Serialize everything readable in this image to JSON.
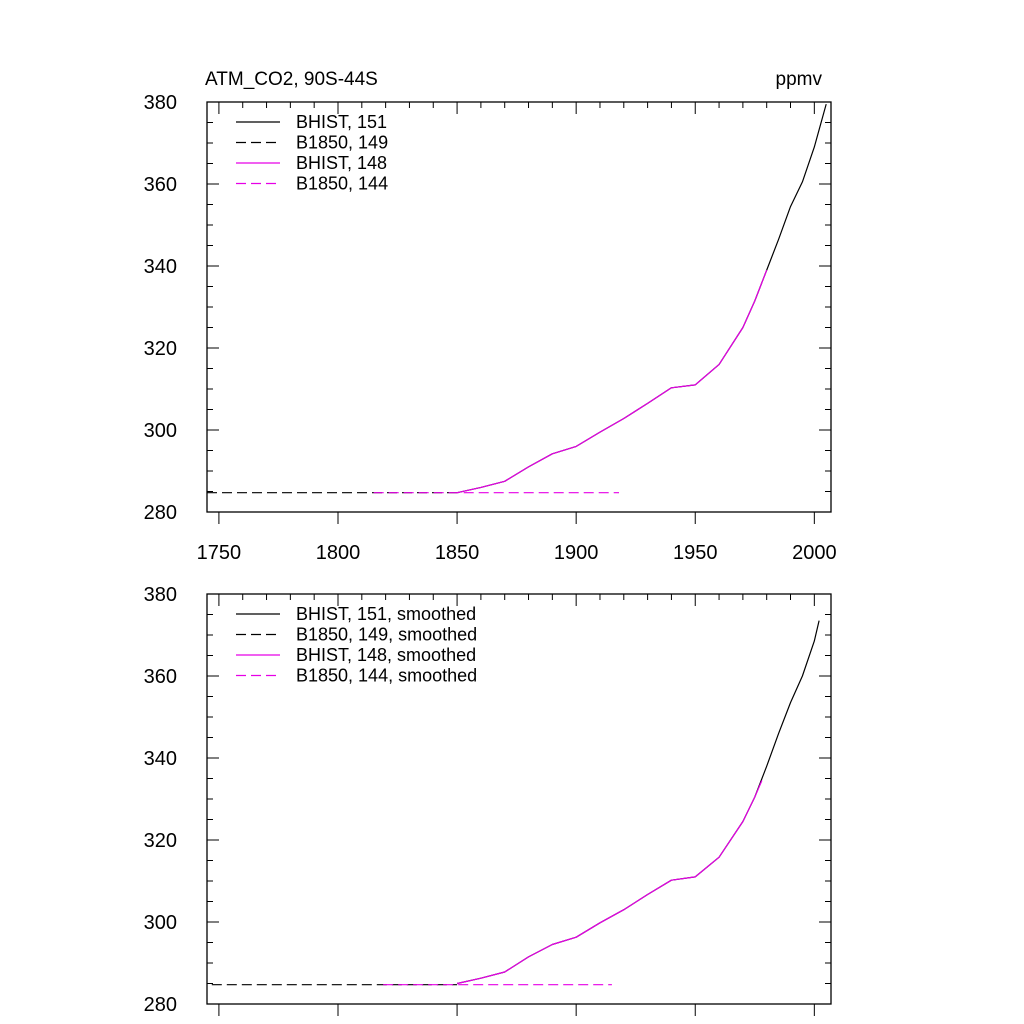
{
  "chart_data": [
    {
      "type": "line",
      "title": "ATM_CO2, 90S-44S",
      "units": "ppmv",
      "xlim": [
        1745,
        2007
      ],
      "ylim": [
        280,
        380
      ],
      "xticks": [
        1750,
        1800,
        1850,
        1900,
        1950,
        2000
      ],
      "xtick_labels": [
        "1750",
        "1800",
        "1850",
        "1900",
        "1950",
        "2000"
      ],
      "yticks": [
        280,
        300,
        320,
        340,
        360,
        380
      ],
      "ytick_labels": [
        "280",
        "300",
        "320",
        "340",
        "360",
        "380"
      ],
      "legend_position": "top-left",
      "series": [
        {
          "name": "BHIST, 151",
          "color": "#000000",
          "dash": "solid",
          "x": [
            1850,
            1860,
            1870,
            1880,
            1890,
            1900,
            1910,
            1920,
            1930,
            1940,
            1950,
            1960,
            1970,
            1975,
            1980,
            1985,
            1990,
            1995,
            2000,
            2005
          ],
          "y": [
            284.7,
            286.0,
            287.5,
            291.0,
            294.2,
            296.0,
            299.5,
            302.8,
            306.5,
            310.3,
            311.0,
            316.0,
            325.0,
            331.5,
            339.0,
            346.5,
            354.5,
            360.5,
            369.0,
            379.5
          ]
        },
        {
          "name": "B1850, 149",
          "color": "#000000",
          "dash": "dashed",
          "x": [
            1745,
            1850
          ],
          "y": [
            284.7,
            284.7
          ]
        },
        {
          "name": "BHIST, 148",
          "color": "#e600e6",
          "dash": "solid",
          "x": [
            1850,
            1860,
            1870,
            1880,
            1890,
            1900,
            1910,
            1920,
            1930,
            1940,
            1950,
            1960,
            1970,
            1975,
            1980
          ],
          "y": [
            284.7,
            286.0,
            287.5,
            291.0,
            294.2,
            296.0,
            299.5,
            302.8,
            306.5,
            310.3,
            311.0,
            316.0,
            325.0,
            331.5,
            339.0
          ]
        },
        {
          "name": "B1850, 144",
          "color": "#e600e6",
          "dash": "dashed",
          "x": [
            1815,
            1918
          ],
          "y": [
            284.7,
            284.7
          ]
        }
      ]
    },
    {
      "type": "line",
      "xlim": [
        1745,
        2007
      ],
      "ylim": [
        280,
        380
      ],
      "xticks": [
        1750,
        1800,
        1850,
        1900,
        1950,
        2000
      ],
      "yticks": [
        280,
        300,
        320,
        340,
        360,
        380
      ],
      "ytick_labels": [
        "280",
        "300",
        "320",
        "340",
        "360",
        "380"
      ],
      "legend_position": "top-left",
      "series": [
        {
          "name": "BHIST, 151, smoothed",
          "color": "#000000",
          "dash": "solid",
          "x": [
            1850,
            1860,
            1870,
            1880,
            1890,
            1900,
            1910,
            1920,
            1930,
            1940,
            1950,
            1960,
            1970,
            1975,
            1980,
            1985,
            1990,
            1995,
            2000,
            2002
          ],
          "y": [
            285.0,
            286.3,
            287.8,
            291.5,
            294.5,
            296.3,
            299.8,
            303.0,
            306.7,
            310.2,
            311.0,
            315.8,
            324.5,
            330.5,
            338.0,
            346.0,
            353.5,
            360.0,
            368.5,
            373.5
          ]
        },
        {
          "name": "B1850, 149, smoothed",
          "color": "#000000",
          "dash": "dashed",
          "x": [
            1747,
            1850
          ],
          "y": [
            284.7,
            284.7
          ]
        },
        {
          "name": "BHIST, 148, smoothed",
          "color": "#e600e6",
          "dash": "solid",
          "x": [
            1850,
            1860,
            1870,
            1880,
            1890,
            1900,
            1910,
            1920,
            1930,
            1940,
            1950,
            1960,
            1970,
            1975,
            1978
          ],
          "y": [
            285.0,
            286.3,
            287.8,
            291.5,
            294.5,
            296.3,
            299.8,
            303.0,
            306.7,
            310.2,
            311.0,
            315.8,
            324.5,
            330.5,
            334.5
          ]
        },
        {
          "name": "B1850, 144, smoothed",
          "color": "#e600e6",
          "dash": "dashed",
          "x": [
            1819,
            1915
          ],
          "y": [
            284.7,
            284.7
          ]
        }
      ]
    }
  ]
}
